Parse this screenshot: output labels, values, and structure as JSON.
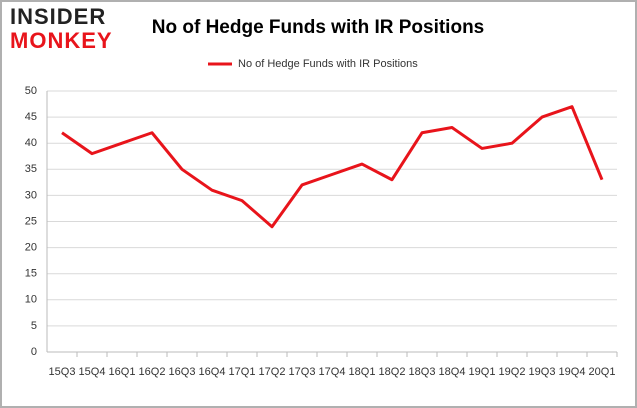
{
  "logo": {
    "line1": "INSIDER",
    "line2": "MONKEY"
  },
  "chart_data": {
    "type": "line",
    "title": "No of Hedge Funds with IR Positions",
    "categories": [
      "15Q3",
      "15Q4",
      "16Q1",
      "16Q2",
      "16Q3",
      "16Q4",
      "17Q1",
      "17Q2",
      "17Q3",
      "17Q4",
      "18Q1",
      "18Q2",
      "18Q3",
      "18Q4",
      "19Q1",
      "19Q2",
      "19Q3",
      "19Q4",
      "20Q1"
    ],
    "series": [
      {
        "name": "No of Hedge Funds with IR Positions",
        "color": "#e8141b",
        "values": [
          42,
          38,
          40,
          42,
          35,
          31,
          29,
          24,
          32,
          34,
          36,
          33,
          42,
          43,
          39,
          40,
          45,
          47,
          33
        ]
      }
    ],
    "ylim": [
      0,
      50
    ],
    "yticks": [
      0,
      5,
      10,
      15,
      20,
      25,
      30,
      35,
      40,
      45,
      50
    ],
    "grid": true,
    "legend": "top"
  }
}
